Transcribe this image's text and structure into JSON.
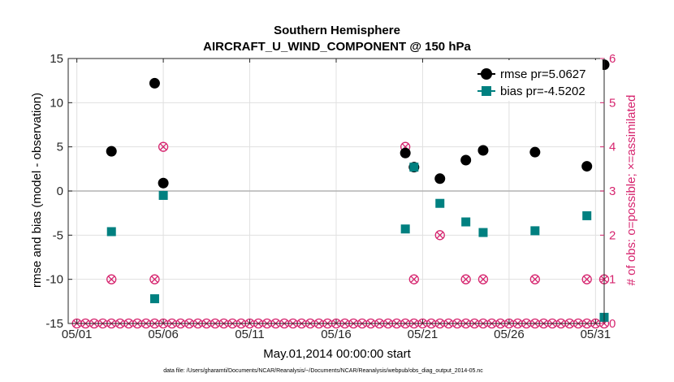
{
  "chart_data": {
    "type": "scatter",
    "title": "Southern Hemisphere",
    "subtitle": "AIRCRAFT_U_WIND_COMPONENT @ 150 hPa",
    "xlabel": "May.01,2014 00:00:00 start",
    "ylabel": "rmse and bias (model - observation)",
    "y2label": "# of obs: o=possible; ×=assimilated",
    "footnote": "data file: /Users/gharamti/Documents/NCAR/Reanalysis/~/Documents/NCAR/Reanalysis/webpub/obs_diag_output_2014-05.nc",
    "xlim": [
      0.5,
      31.5
    ],
    "ylim": [
      -15,
      15
    ],
    "y2lim": [
      0,
      6
    ],
    "x_ticks": [
      1,
      6,
      11,
      16,
      21,
      26,
      31
    ],
    "x_tick_labels": [
      "05/01",
      "05/06",
      "05/11",
      "05/16",
      "05/21",
      "05/26",
      "05/31"
    ],
    "y_ticks": [
      -15,
      -10,
      -5,
      0,
      5,
      10,
      15
    ],
    "y2_ticks": [
      0,
      1,
      2,
      3,
      4,
      5,
      6
    ],
    "grid": true,
    "legend_position": "top-right",
    "colors": {
      "rmse": "#000000",
      "bias": "#008080",
      "obs": "#d6246e",
      "zero_line": "#b3b3b3",
      "grid": "#e0e0e0"
    },
    "series": [
      {
        "name": "rmse pr=5.0627",
        "marker": "circle",
        "axis": "left",
        "points": [
          [
            3,
            4.5
          ],
          [
            5.5,
            12.2
          ],
          [
            6,
            0.9
          ],
          [
            20,
            4.3
          ],
          [
            20.5,
            2.7
          ],
          [
            22,
            1.4
          ],
          [
            23.5,
            3.5
          ],
          [
            24.5,
            4.6
          ],
          [
            27.5,
            4.4
          ],
          [
            30.5,
            2.8
          ],
          [
            31.5,
            14.3
          ]
        ]
      },
      {
        "name": "bias pr=-4.5202",
        "marker": "square",
        "axis": "left",
        "points": [
          [
            3,
            -4.6
          ],
          [
            5.5,
            -12.2
          ],
          [
            6,
            -0.5
          ],
          [
            20,
            -4.3
          ],
          [
            20.5,
            2.7
          ],
          [
            22,
            -1.4
          ],
          [
            23.5,
            -3.5
          ],
          [
            24.5,
            -4.7
          ],
          [
            27.5,
            -4.5
          ],
          [
            30.5,
            -2.8
          ],
          [
            31.5,
            -14.3
          ]
        ]
      },
      {
        "name": "obs possible",
        "marker": "circle-open",
        "axis": "right",
        "points": [
          [
            3,
            1
          ],
          [
            5.5,
            1
          ],
          [
            6,
            4
          ],
          [
            20,
            4
          ],
          [
            20.5,
            1
          ],
          [
            22,
            2
          ],
          [
            23.5,
            1
          ],
          [
            24.5,
            1
          ],
          [
            27.5,
            1
          ],
          [
            30.5,
            1
          ],
          [
            31.5,
            1
          ]
        ]
      },
      {
        "name": "obs assimilated",
        "marker": "cross",
        "axis": "right",
        "points": [
          [
            3,
            1
          ],
          [
            5.5,
            1
          ],
          [
            6,
            4
          ],
          [
            20,
            4
          ],
          [
            20.5,
            1
          ],
          [
            22,
            2
          ],
          [
            23.5,
            1
          ],
          [
            24.5,
            1
          ],
          [
            27.5,
            1
          ],
          [
            30.5,
            1
          ],
          [
            31.5,
            1
          ]
        ]
      }
    ]
  }
}
